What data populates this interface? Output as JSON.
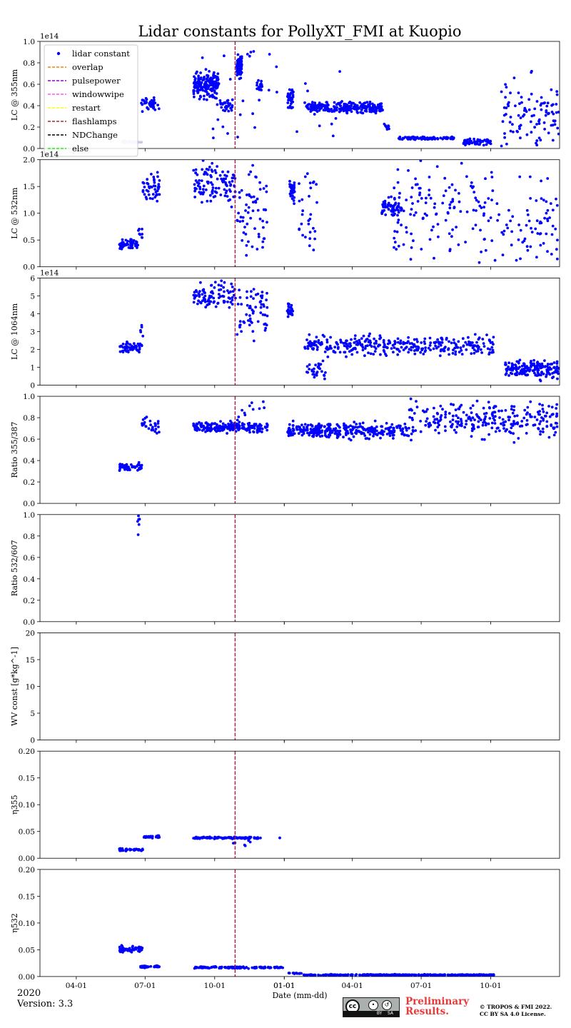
{
  "figure": {
    "title": "Lidar constants for PollyXT_FMI at Kuopio",
    "xlabel": "Date (mm-dd)",
    "year_label": "2020",
    "version_label": "Version: 3.3",
    "preliminary_line1": "Preliminary",
    "preliminary_line2": "Results.",
    "copyright_line1": "© TROPOS & FMI 2022.",
    "copyright_line2": "CC BY SA 4.0 License.",
    "cc_badge": {
      "cc": "cc",
      "by": "BY",
      "sa": "SA"
    }
  },
  "colors": {
    "points": "#0000ff",
    "faded_points": "#c8c8f0",
    "event_line": "#a01e4b",
    "legend_overlap": "#ff7f0e",
    "legend_pulsepower": "#9400d3",
    "legend_windowwipe": "#ff55ff",
    "legend_restart": "#ffff00",
    "legend_flashlamps": "#a52a2a",
    "legend_ndchange": "#000000",
    "legend_else": "#00ff00"
  },
  "legend": {
    "placement": "upper-left of top panel",
    "entries": [
      {
        "label": "lidar constant",
        "marker": "dot",
        "color": "#0000ff"
      },
      {
        "label": "overlap",
        "marker": "dash",
        "color": "#ff7f0e"
      },
      {
        "label": "pulsepower",
        "marker": "dash",
        "color": "#9400d3"
      },
      {
        "label": "windowwipe",
        "marker": "dash",
        "color": "#ff55ff"
      },
      {
        "label": "restart",
        "marker": "dash",
        "color": "#ffff00"
      },
      {
        "label": "flashlamps",
        "marker": "dash",
        "color": "#a52a2a"
      },
      {
        "label": "NDChange",
        "marker": "dash",
        "color": "#000000"
      },
      {
        "label": "else",
        "marker": "dash",
        "color": "#00ff00"
      }
    ]
  },
  "chart_data": [
    {
      "type": "scatter",
      "ylabel": "LC @ 355nm",
      "offset_label": "1e14",
      "ylim": [
        0,
        1.0
      ],
      "yticks": [
        "0.0",
        "0.2",
        "0.4",
        "0.6",
        "0.8",
        "1.0"
      ],
      "xlim": [
        "2020-02-13",
        "2021-12-31"
      ],
      "xticks": [
        "04-01",
        "07-01",
        "10-01",
        "01-01",
        "04-01",
        "07-01",
        "10-01",
        "01-01"
      ],
      "event_lines": [
        "2020-10-28"
      ],
      "segments": [
        {
          "from": "2020-05-28",
          "to": "2020-06-27",
          "y": 0.06,
          "spread": 0.01,
          "n": 25,
          "faded": true
        },
        {
          "from": "2020-06-25",
          "to": "2020-07-20",
          "y": 0.41,
          "spread": 0.05,
          "n": 40
        },
        {
          "from": "2020-09-03",
          "to": "2020-10-06",
          "y": 0.6,
          "spread": 0.1,
          "n": 160
        },
        {
          "from": "2020-10-08",
          "to": "2020-10-25",
          "y": 0.4,
          "spread": 0.05,
          "n": 30
        },
        {
          "from": "2020-10-30",
          "to": "2020-11-06",
          "y": 0.77,
          "spread": 0.08,
          "n": 80
        },
        {
          "from": "2020-11-25",
          "to": "2020-12-03",
          "y": 0.58,
          "spread": 0.05,
          "n": 20
        },
        {
          "from": "2021-01-05",
          "to": "2021-01-13",
          "y": 0.47,
          "spread": 0.07,
          "n": 40
        },
        {
          "from": "2021-01-30",
          "to": "2021-05-12",
          "y": 0.38,
          "spread": 0.04,
          "n": 260
        },
        {
          "from": "2021-05-13",
          "to": "2021-05-20",
          "y": 0.2,
          "spread": 0.03,
          "n": 12
        },
        {
          "from": "2021-06-01",
          "to": "2021-08-15",
          "y": 0.095,
          "spread": 0.012,
          "n": 90
        },
        {
          "from": "2021-08-25",
          "to": "2021-10-03",
          "y": 0.06,
          "spread": 0.025,
          "n": 60
        },
        {
          "from": "2021-10-15",
          "to": "2021-12-30",
          "y": 0.3,
          "spread": 0.28,
          "n": 100
        },
        {
          "from": "2020-09-05",
          "to": "2021-03-20",
          "y": 0.5,
          "spread": 0.45,
          "n": 40
        }
      ]
    },
    {
      "type": "scatter",
      "ylabel": "LC @ 532nm",
      "offset_label": "1e14",
      "ylim": [
        0,
        2.0
      ],
      "yticks": [
        "0.0",
        "0.5",
        "1.0",
        "1.5",
        "2.0"
      ],
      "xlim": [
        "2020-02-13",
        "2021-12-31"
      ],
      "xticks": [
        "04-01",
        "07-01",
        "10-01",
        "01-01",
        "04-01",
        "07-01",
        "10-01",
        "01-01"
      ],
      "event_lines": [
        "2020-10-28"
      ],
      "segments": [
        {
          "from": "2020-05-28",
          "to": "2020-06-22",
          "y": 0.42,
          "spread": 0.07,
          "n": 60
        },
        {
          "from": "2020-06-22",
          "to": "2020-06-28",
          "y": 0.65,
          "spread": 0.1,
          "n": 8
        },
        {
          "from": "2020-06-28",
          "to": "2020-07-20",
          "y": 1.5,
          "spread": 0.25,
          "n": 45
        },
        {
          "from": "2020-09-03",
          "to": "2020-10-30",
          "y": 1.55,
          "spread": 0.35,
          "n": 110
        },
        {
          "from": "2020-10-30",
          "to": "2020-12-10",
          "y": 1.0,
          "spread": 0.7,
          "n": 60
        },
        {
          "from": "2021-01-08",
          "to": "2021-01-15",
          "y": 1.45,
          "spread": 0.2,
          "n": 35
        },
        {
          "from": "2021-01-20",
          "to": "2021-02-15",
          "y": 1.0,
          "spread": 0.8,
          "n": 30
        },
        {
          "from": "2021-05-10",
          "to": "2021-06-05",
          "y": 1.1,
          "spread": 0.15,
          "n": 60
        },
        {
          "from": "2021-05-25",
          "to": "2021-12-30",
          "y": 0.95,
          "spread": 0.8,
          "n": 210
        }
      ]
    },
    {
      "type": "scatter",
      "ylabel": "LC @ 1064nm",
      "offset_label": "1e14",
      "ylim": [
        0,
        6
      ],
      "yticks": [
        "0",
        "1",
        "2",
        "3",
        "4",
        "5",
        "6"
      ],
      "xlim": [
        "2020-02-13",
        "2021-12-31"
      ],
      "xticks": [
        "04-01",
        "07-01",
        "10-01",
        "01-01",
        "04-01",
        "07-01",
        "10-01",
        "01-01"
      ],
      "event_lines": [
        "2020-10-28"
      ],
      "segments": [
        {
          "from": "2020-05-28",
          "to": "2020-06-27",
          "y": 2.1,
          "spread": 0.25,
          "n": 60
        },
        {
          "from": "2020-06-25",
          "to": "2020-06-30",
          "y": 3.2,
          "spread": 0.3,
          "n": 5
        },
        {
          "from": "2020-09-03",
          "to": "2020-10-30",
          "y": 5.1,
          "spread": 0.6,
          "n": 90
        },
        {
          "from": "2020-10-30",
          "to": "2020-12-10",
          "y": 4.2,
          "spread": 1.3,
          "n": 60
        },
        {
          "from": "2021-01-05",
          "to": "2021-01-13",
          "y": 4.2,
          "spread": 0.3,
          "n": 25
        },
        {
          "from": "2021-01-28",
          "to": "2021-02-25",
          "y": 0.8,
          "spread": 0.6,
          "n": 30
        },
        {
          "from": "2021-01-28",
          "to": "2021-10-05",
          "y": 2.2,
          "spread": 0.45,
          "n": 320
        },
        {
          "from": "2021-10-20",
          "to": "2021-12-30",
          "y": 0.9,
          "spread": 0.45,
          "n": 180
        }
      ]
    },
    {
      "type": "scatter",
      "ylabel": "Ratio 355/387",
      "ylim": [
        0,
        1.0
      ],
      "yticks": [
        "0.0",
        "0.2",
        "0.4",
        "0.6",
        "0.8",
        "1.0"
      ],
      "xlim": [
        "2020-02-13",
        "2021-12-31"
      ],
      "xticks": [
        "04-01",
        "07-01",
        "10-01",
        "01-01",
        "04-01",
        "07-01",
        "10-01",
        "01-01"
      ],
      "event_lines": [
        "2020-10-28"
      ],
      "segments": [
        {
          "from": "2020-05-28",
          "to": "2020-06-27",
          "y": 0.34,
          "spread": 0.03,
          "n": 50
        },
        {
          "from": "2020-06-27",
          "to": "2020-07-20",
          "y": 0.73,
          "spread": 0.07,
          "n": 30
        },
        {
          "from": "2020-09-03",
          "to": "2020-12-10",
          "y": 0.71,
          "spread": 0.04,
          "n": 200
        },
        {
          "from": "2020-10-15",
          "to": "2020-12-10",
          "y": 0.85,
          "spread": 0.1,
          "n": 12
        },
        {
          "from": "2021-01-05",
          "to": "2021-06-15",
          "y": 0.68,
          "spread": 0.06,
          "n": 300
        },
        {
          "from": "2021-06-15",
          "to": "2021-12-30",
          "y": 0.78,
          "spread": 0.13,
          "n": 260
        }
      ]
    },
    {
      "type": "scatter",
      "ylabel": "Ratio 532/607",
      "ylim": [
        0,
        1.0
      ],
      "yticks": [
        "0.0",
        "0.2",
        "0.4",
        "0.6",
        "0.8",
        "1.0"
      ],
      "xlim": [
        "2020-02-13",
        "2021-12-31"
      ],
      "xticks": [
        "04-01",
        "07-01",
        "10-01",
        "01-01",
        "04-01",
        "07-01",
        "10-01",
        "01-01"
      ],
      "event_lines": [
        "2020-10-28"
      ],
      "segments": [
        {
          "from": "2020-06-20",
          "to": "2020-06-24",
          "y": 0.95,
          "spread": 0.04,
          "n": 5
        },
        {
          "from": "2020-06-21",
          "to": "2020-06-22",
          "y": 0.81,
          "spread": 0.005,
          "n": 1
        }
      ]
    },
    {
      "type": "scatter",
      "ylabel": "WV const [g*kg^-1]",
      "ylim": [
        0,
        20
      ],
      "yticks": [
        "0",
        "5",
        "10",
        "15",
        "20"
      ],
      "xlim": [
        "2020-02-13",
        "2021-12-31"
      ],
      "xticks": [
        "04-01",
        "07-01",
        "10-01",
        "01-01",
        "04-01",
        "07-01",
        "10-01",
        "01-01"
      ],
      "event_lines": [
        "2020-10-28"
      ],
      "segments": []
    },
    {
      "type": "scatter",
      "ylabel": "η355",
      "ylim": [
        0,
        0.2
      ],
      "yticks": [
        "0.00",
        "0.05",
        "0.10",
        "0.15",
        "0.20"
      ],
      "xlim": [
        "2020-02-13",
        "2021-12-31"
      ],
      "xticks": [
        "04-01",
        "07-01",
        "10-01",
        "01-01",
        "04-01",
        "07-01",
        "10-01",
        "01-01"
      ],
      "event_lines": [
        "2020-10-28"
      ],
      "segments": [
        {
          "from": "2020-05-28",
          "to": "2020-06-28",
          "y": 0.016,
          "spread": 0.002,
          "n": 40
        },
        {
          "from": "2020-06-28",
          "to": "2020-07-20",
          "y": 0.04,
          "spread": 0.0015,
          "n": 40
        },
        {
          "from": "2020-09-03",
          "to": "2020-12-01",
          "y": 0.038,
          "spread": 0.0015,
          "n": 120
        },
        {
          "from": "2020-10-25",
          "to": "2020-11-20",
          "y": 0.028,
          "spread": 0.006,
          "n": 6
        },
        {
          "from": "2020-12-25",
          "to": "2020-12-27",
          "y": 0.038,
          "spread": 0.001,
          "n": 1
        }
      ]
    },
    {
      "type": "scatter",
      "ylabel": "η532",
      "ylim": [
        0,
        0.2
      ],
      "yticks": [
        "0.00",
        "0.05",
        "0.10",
        "0.15",
        "0.20"
      ],
      "xlim": [
        "2020-02-13",
        "2021-12-31"
      ],
      "xticks": [
        "04-01",
        "07-01",
        "10-01",
        "01-01",
        "04-01",
        "07-01",
        "10-01",
        "01-01"
      ],
      "event_lines": [
        "2020-10-28"
      ],
      "segments": [
        {
          "from": "2020-05-28",
          "to": "2020-06-28",
          "y": 0.051,
          "spread": 0.005,
          "n": 60
        },
        {
          "from": "2020-06-25",
          "to": "2020-07-20",
          "y": 0.018,
          "spread": 0.0015,
          "n": 40
        },
        {
          "from": "2020-09-03",
          "to": "2020-12-30",
          "y": 0.017,
          "spread": 0.0015,
          "n": 140
        },
        {
          "from": "2021-01-05",
          "to": "2021-01-25",
          "y": 0.006,
          "spread": 0.001,
          "n": 15
        },
        {
          "from": "2021-01-25",
          "to": "2021-10-05",
          "y": 0.003,
          "spread": 0.0008,
          "n": 330
        }
      ]
    }
  ]
}
